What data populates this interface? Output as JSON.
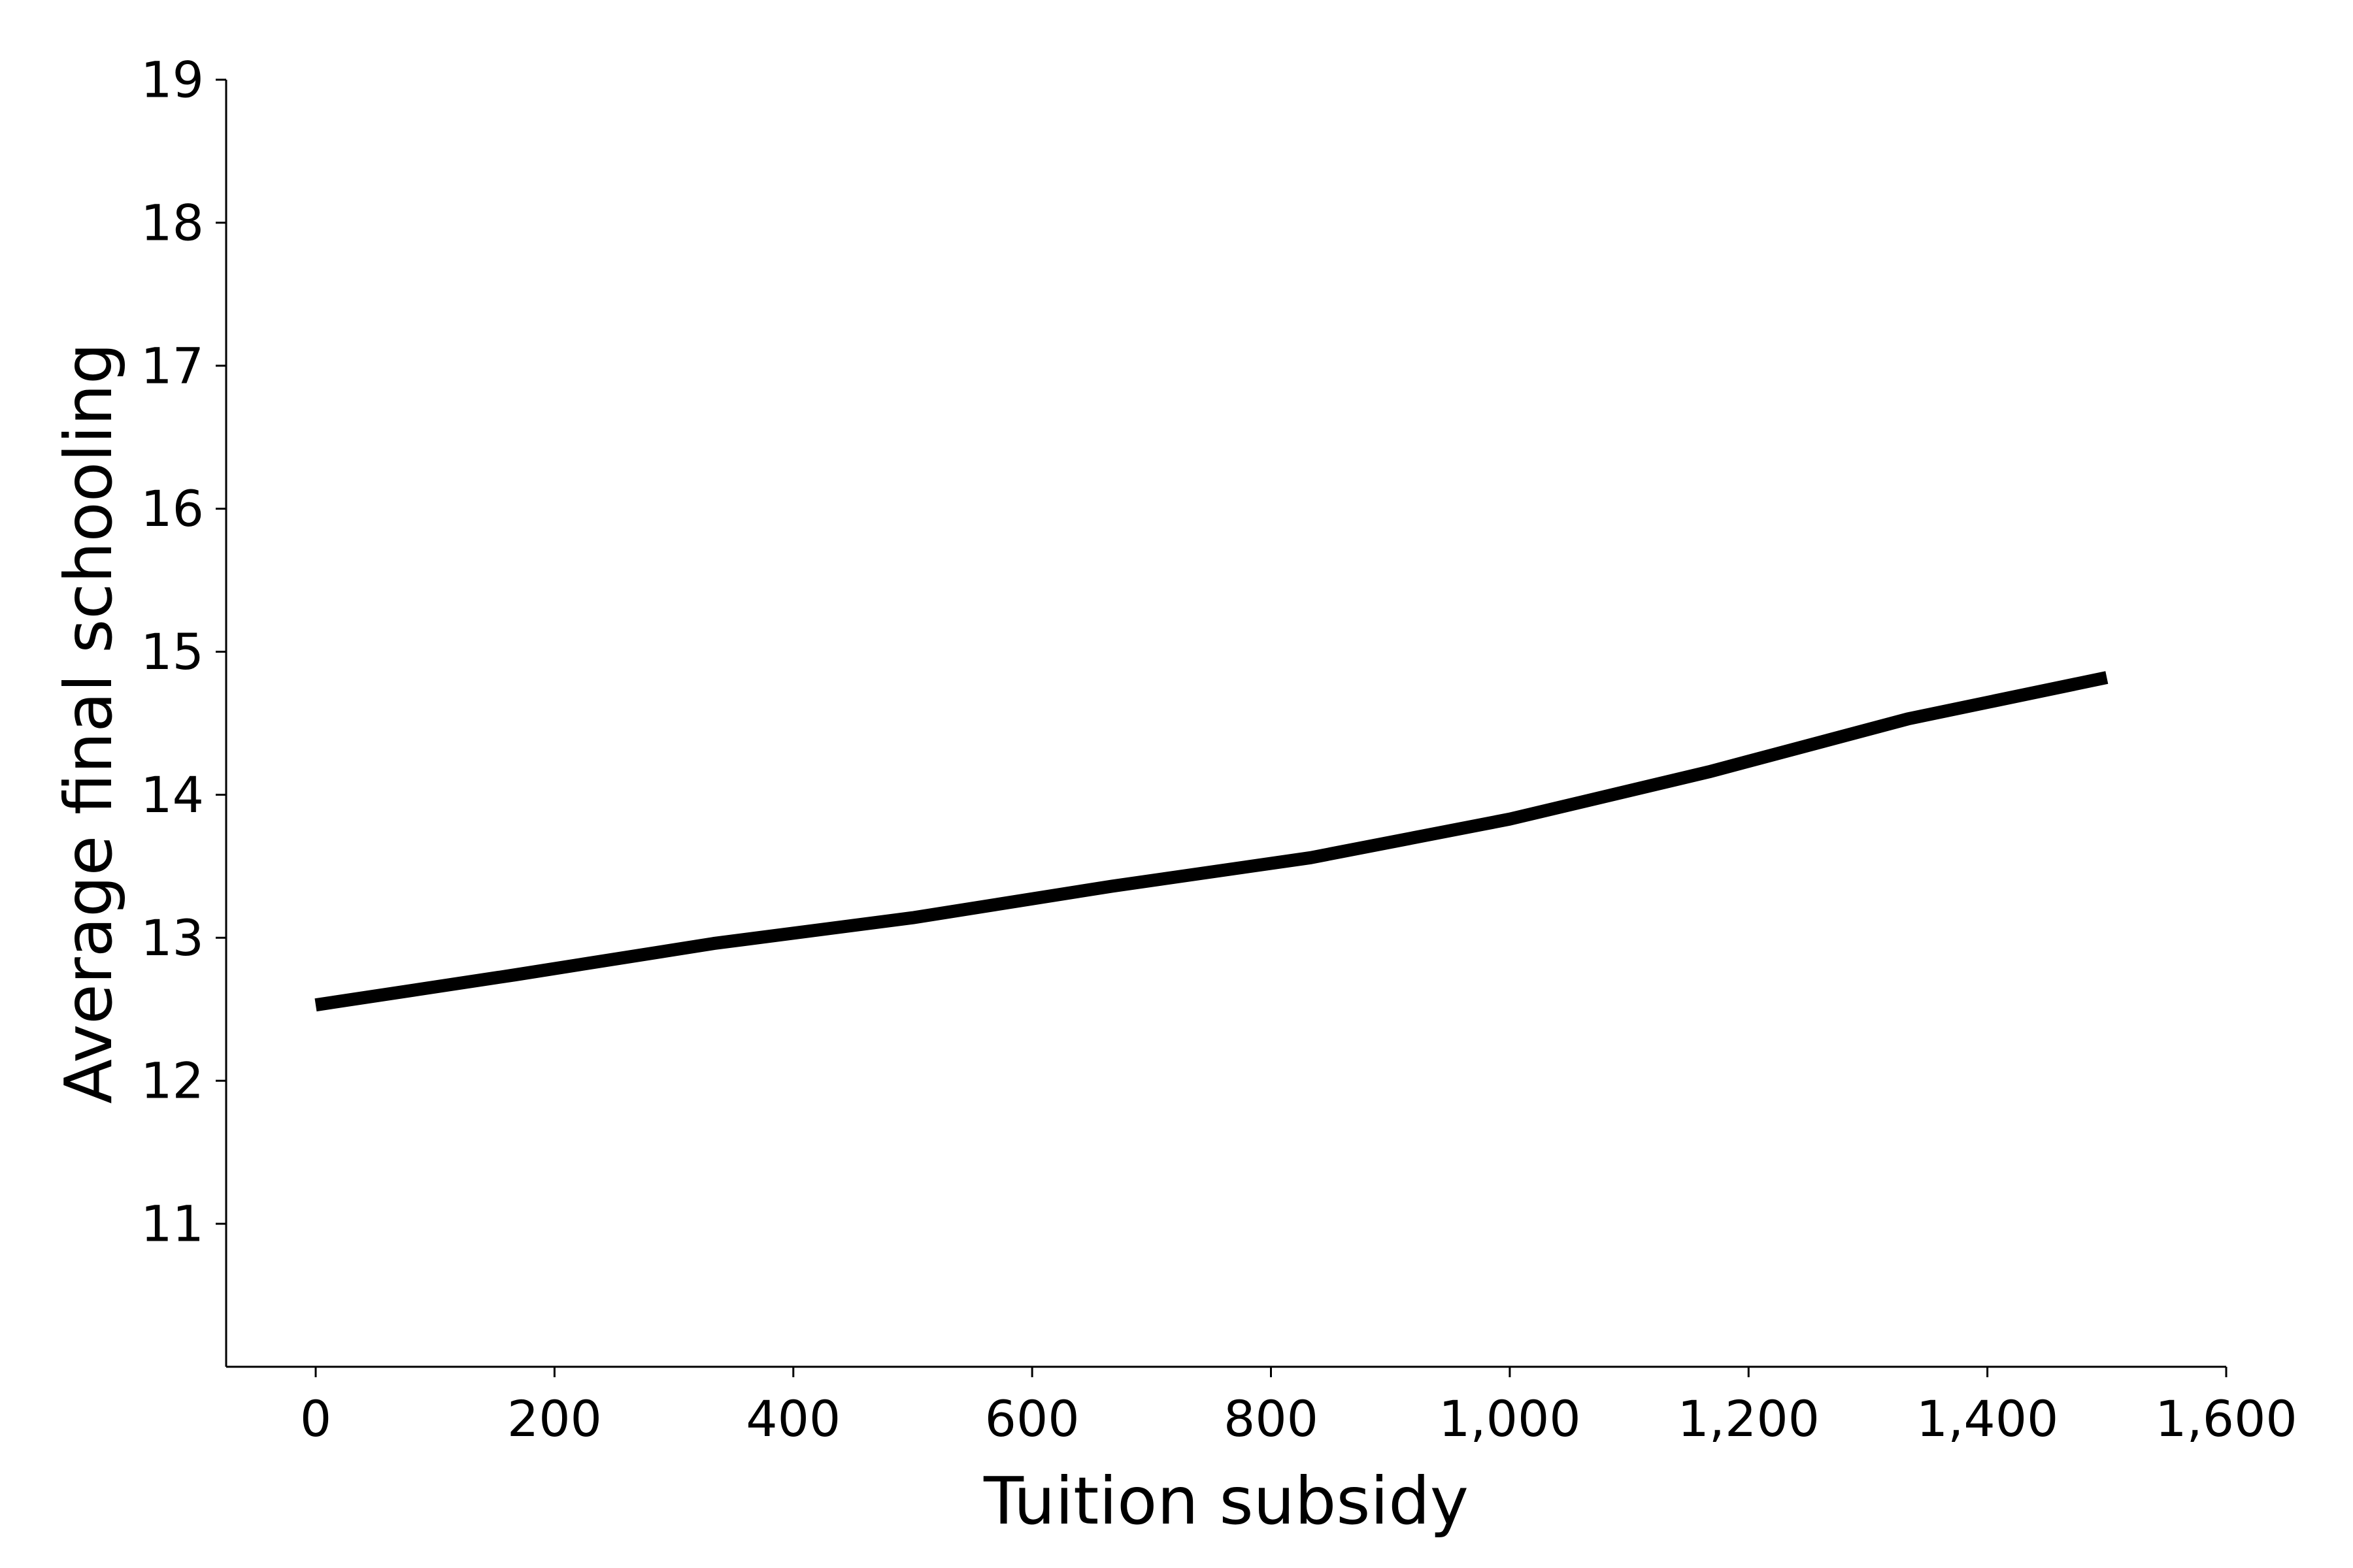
{
  "chart_data": {
    "type": "line",
    "title": "",
    "xlabel": "Tuition subsidy",
    "ylabel": "Average final schooling",
    "xlim": [
      -75,
      1600
    ],
    "ylim": [
      10,
      19
    ],
    "xticks": [
      0,
      200,
      400,
      600,
      800,
      1000,
      1200,
      1400,
      1600
    ],
    "xtick_labels": [
      "0",
      "200",
      "400",
      "600",
      "800",
      "1,000",
      "1,200",
      "1,400",
      "1,600"
    ],
    "yticks": [
      11,
      12,
      13,
      14,
      15,
      16,
      17,
      18,
      19
    ],
    "ytick_labels": [
      "11",
      "12",
      "13",
      "14",
      "15",
      "16",
      "17",
      "18",
      "19"
    ],
    "grid": false,
    "legend": "none",
    "series": [
      {
        "color": "#000000",
        "x": [
          0,
          166.7,
          333.3,
          500,
          666.7,
          833.3,
          1000,
          1166.7,
          1333.3,
          1500
        ],
        "y": [
          12.53,
          12.74,
          12.96,
          13.14,
          13.36,
          13.56,
          13.83,
          14.16,
          14.53,
          14.82
        ]
      }
    ]
  }
}
